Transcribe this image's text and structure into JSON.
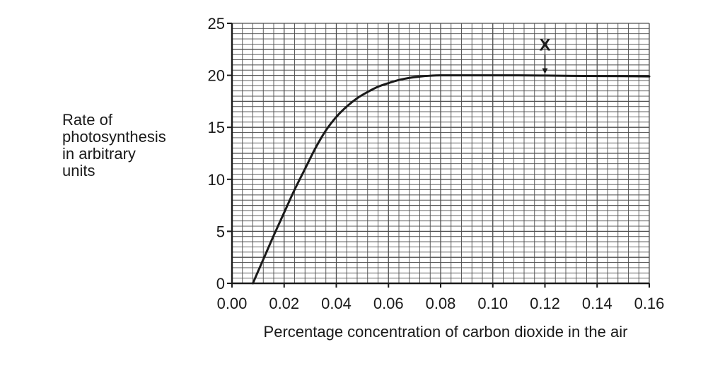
{
  "chart_data": {
    "type": "line",
    "title": "",
    "xlabel": "Percentage concentration of carbon dioxide in the air",
    "ylabel_lines": [
      "Rate of",
      "photosynthesis",
      "in arbitrary",
      "units"
    ],
    "xlim": [
      0,
      0.16
    ],
    "ylim": [
      0,
      25
    ],
    "x_ticks": [
      0,
      0.02,
      0.04,
      0.06,
      0.08,
      0.1,
      0.12,
      0.14,
      0.16
    ],
    "x_tick_labels": [
      "0.00",
      "0.02",
      "0.04",
      "0.06",
      "0.08",
      "0.10",
      "0.12",
      "0.14",
      "0.16"
    ],
    "y_ticks": [
      0,
      5,
      10,
      15,
      20,
      25
    ],
    "y_tick_labels": [
      "0",
      "5",
      "10",
      "15",
      "20",
      "25"
    ],
    "grid": true,
    "legend": "none",
    "series": [
      {
        "x": [
          0.008,
          0.012,
          0.016,
          0.02,
          0.024,
          0.028,
          0.032,
          0.036,
          0.04,
          0.044,
          0.048,
          0.052,
          0.056,
          0.06,
          0.064,
          0.068,
          0.072,
          0.076,
          0.08,
          0.09,
          0.1,
          0.11,
          0.12,
          0.13,
          0.14,
          0.15,
          0.16
        ],
        "y": [
          0,
          2.3,
          4.6,
          6.8,
          9.0,
          11.0,
          13.0,
          14.7,
          16.0,
          17.0,
          17.8,
          18.4,
          18.9,
          19.25,
          19.55,
          19.75,
          19.88,
          19.96,
          20.0,
          20.0,
          20.0,
          20.0,
          19.98,
          19.95,
          19.93,
          19.92,
          19.9
        ],
        "color": "#1a1a1a"
      }
    ],
    "annotations": [
      {
        "text": "X",
        "x": 0.12,
        "y": 20,
        "type": "arrow-down"
      }
    ],
    "colors": {
      "grid": "#4d4d4d",
      "axis": "#1a1a1a",
      "line": "#1a1a1a",
      "background": "#ffffff"
    }
  }
}
